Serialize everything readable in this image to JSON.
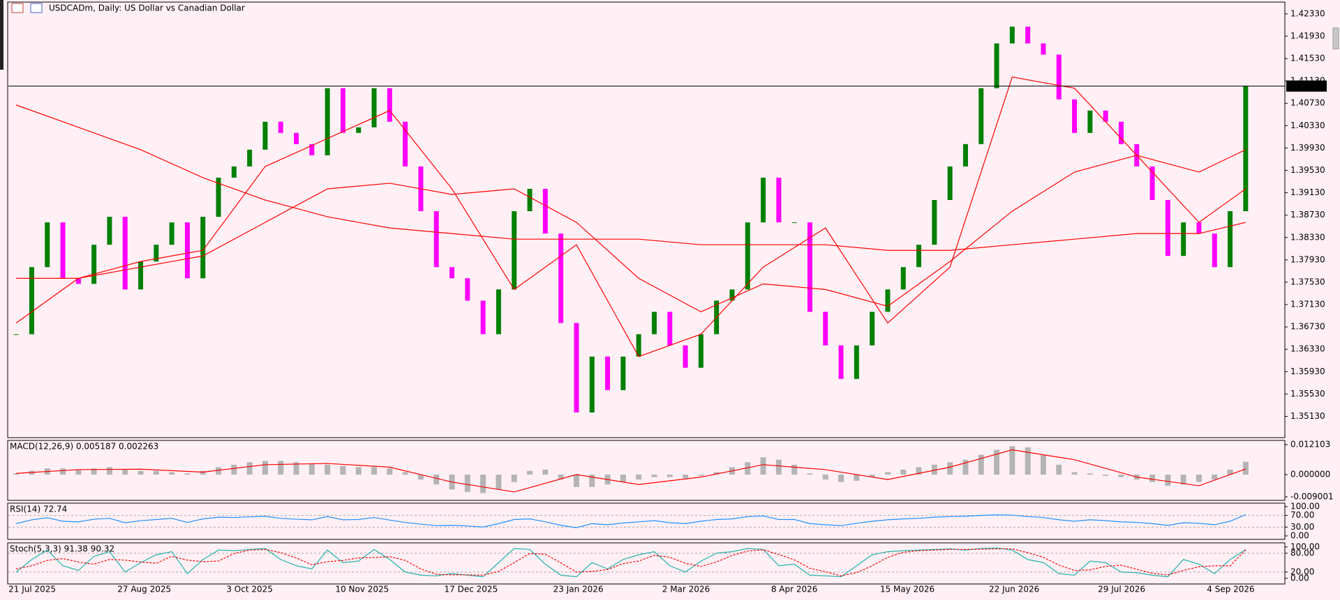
{
  "chart_data": [
    {
      "type": "candlestick",
      "title": "USDCADm, Daily:  US Dollar vs Canadian Dollar",
      "categories": [
        "21 Jul 2025",
        null,
        null,
        null,
        null,
        null,
        null,
        "27 Aug 2025",
        null,
        null,
        null,
        null,
        null,
        null,
        "3 Oct 2025",
        null,
        null,
        null,
        null,
        null,
        null,
        "10 Nov 2025",
        null,
        null,
        null,
        null,
        null,
        null,
        "17 Dec 2025",
        null,
        null,
        null,
        null,
        null,
        null,
        "23 Jan 2026",
        null,
        null,
        null,
        null,
        null,
        null,
        "2 Mar 2026",
        null,
        null,
        null,
        null,
        null,
        null,
        "8 Apr 2026",
        null,
        null,
        null,
        null,
        null,
        null,
        "15 May 2026",
        null,
        null,
        null,
        null,
        null,
        null,
        "22 Jun 2026",
        null,
        null,
        null,
        null,
        null,
        null,
        "29 Jul 2026",
        null,
        null,
        null,
        null,
        null,
        null,
        "4 Sep 2026",
        null,
        null
      ],
      "values": [
        1.366,
        1.378,
        1.386,
        1.376,
        1.375,
        1.382,
        1.387,
        1.374,
        1.379,
        1.382,
        1.386,
        1.376,
        1.387,
        1.394,
        1.396,
        1.399,
        1.404,
        1.402,
        1.4,
        1.398,
        1.41,
        1.402,
        1.403,
        1.41,
        1.404,
        1.396,
        1.388,
        1.378,
        1.376,
        1.372,
        1.366,
        1.374,
        1.388,
        1.392,
        1.384,
        1.368,
        1.352,
        1.362,
        1.356,
        1.362,
        1.366,
        1.37,
        1.364,
        1.36,
        1.366,
        1.372,
        1.374,
        1.386,
        1.394,
        1.386,
        1.386,
        1.37,
        1.364,
        1.358,
        1.364,
        1.37,
        1.374,
        1.378,
        1.382,
        1.39,
        1.396,
        1.4,
        1.41,
        1.418,
        1.421,
        1.418,
        1.416,
        1.408,
        1.402,
        1.406,
        1.404,
        1.4,
        1.396,
        1.39,
        1.38,
        1.386,
        1.384,
        1.378,
        1.388,
        1.41038
      ],
      "up_color": "#008000",
      "down_color": "#ff00ff",
      "series": [
        {
          "color": "#ff0000",
          "x": [
            0,
            4,
            8,
            12,
            16,
            20,
            24,
            28,
            32,
            36,
            40,
            44,
            48,
            52,
            56,
            60,
            64,
            68,
            72,
            76,
            79
          ],
          "values": [
            1.368,
            1.376,
            1.379,
            1.381,
            1.396,
            1.401,
            1.406,
            1.392,
            1.374,
            1.382,
            1.362,
            1.366,
            1.378,
            1.385,
            1.368,
            1.378,
            1.412,
            1.41,
            1.398,
            1.386,
            1.392
          ]
        },
        {
          "color": "#ff0000",
          "x": [
            0,
            4,
            8,
            12,
            16,
            20,
            24,
            28,
            32,
            36,
            40,
            44,
            48,
            52,
            56,
            60,
            64,
            68,
            72,
            76,
            79
          ],
          "values": [
            1.376,
            1.376,
            1.378,
            1.38,
            1.386,
            1.392,
            1.393,
            1.391,
            1.392,
            1.386,
            1.376,
            1.37,
            1.375,
            1.374,
            1.371,
            1.379,
            1.388,
            1.395,
            1.398,
            1.395,
            1.399
          ]
        },
        {
          "color": "#ff0000",
          "x": [
            0,
            4,
            8,
            12,
            16,
            20,
            24,
            28,
            32,
            36,
            40,
            44,
            48,
            52,
            56,
            60,
            64,
            68,
            72,
            76,
            79
          ],
          "values": [
            1.407,
            1.403,
            1.399,
            1.394,
            1.39,
            1.387,
            1.385,
            1.384,
            1.383,
            1.383,
            1.383,
            1.382,
            1.382,
            1.382,
            1.381,
            1.381,
            1.382,
            1.383,
            1.384,
            1.384,
            1.386
          ]
        }
      ],
      "current_price": 1.41038,
      "ylim": [
        1.3475,
        1.4254
      ],
      "yticks": [
        {
          "value": 1.3513,
          "label": "1.35130"
        },
        {
          "value": 1.3553,
          "label": "1.35530"
        },
        {
          "value": 1.3593,
          "label": "1.35930"
        },
        {
          "value": 1.3633,
          "label": "1.36330"
        },
        {
          "value": 1.3673,
          "label": "1.36730"
        },
        {
          "value": 1.3713,
          "label": "1.37130"
        },
        {
          "value": 1.3753,
          "label": "1.37530"
        },
        {
          "value": 1.3793,
          "label": "1.37930"
        },
        {
          "value": 1.3833,
          "label": "1.38330"
        },
        {
          "value": 1.3873,
          "label": "1.38730"
        },
        {
          "value": 1.3913,
          "label": "1.39130"
        },
        {
          "value": 1.3953,
          "label": "1.39530"
        },
        {
          "value": 1.3993,
          "label": "1.39930"
        },
        {
          "value": 1.4033,
          "label": "1.40330"
        },
        {
          "value": 1.4073,
          "label": "1.40730"
        },
        {
          "value": 1.4113,
          "label": "1.41130"
        },
        {
          "value": 1.4153,
          "label": "1.41530"
        },
        {
          "value": 1.4193,
          "label": "1.41930"
        },
        {
          "value": 1.4233,
          "label": "1.42330"
        }
      ]
    },
    {
      "type": "macd",
      "title": "MACD(12,26,9) 0.005187 0.002263",
      "color": "#b4b4b4",
      "values": [
        0.0005,
        0.0015,
        0.0025,
        0.0025,
        0.002,
        0.0025,
        0.003,
        0.002,
        0.0015,
        0.0015,
        0.001,
        0.0005,
        0.0015,
        0.003,
        0.004,
        0.005,
        0.0055,
        0.0055,
        0.005,
        0.0045,
        0.004,
        0.0035,
        0.003,
        0.003,
        0.0025,
        0.001,
        -0.002,
        -0.004,
        -0.006,
        -0.007,
        -0.0075,
        -0.006,
        -0.003,
        0.0015,
        0.002,
        -0.002,
        -0.005,
        -0.005,
        -0.004,
        -0.003,
        -0.002,
        -0.001,
        -0.001,
        -0.0015,
        -0.0005,
        0.001,
        0.003,
        0.005,
        0.007,
        0.006,
        0.004,
        0.0005,
        -0.002,
        -0.003,
        -0.0025,
        -0.001,
        0.001,
        0.002,
        0.003,
        0.004,
        0.005,
        0.006,
        0.008,
        0.01,
        0.0115,
        0.011,
        0.008,
        0.004,
        0.001,
        0.0005,
        -0.0005,
        -0.001,
        -0.002,
        -0.003,
        -0.0045,
        -0.004,
        -0.003,
        -0.002,
        0.002,
        0.005187
      ],
      "series": [
        {
          "color": "#ff0000",
          "x": [
            0,
            4,
            8,
            12,
            16,
            20,
            24,
            28,
            32,
            36,
            40,
            44,
            48,
            52,
            56,
            60,
            64,
            68,
            72,
            76,
            79
          ],
          "values": [
            0.0005,
            0.002,
            0.0022,
            0.001,
            0.004,
            0.0045,
            0.003,
            -0.003,
            -0.007,
            0,
            -0.004,
            -0.001,
            0.004,
            0.002,
            -0.002,
            0.003,
            0.01,
            0.006,
            -0.001,
            -0.0045,
            0.002263
          ]
        }
      ],
      "ylim": [
        -0.0104,
        0.0138
      ],
      "yticks": [
        -0.009001,
        {
          "value": 0,
          "label": "0.000000"
        },
        0.012103
      ]
    },
    {
      "type": "rsi",
      "title": "RSI(14) 72.74",
      "color": "#1e90ff",
      "values": [
        42,
        55,
        62,
        50,
        48,
        57,
        60,
        45,
        52,
        56,
        60,
        46,
        58,
        64,
        63,
        65,
        67,
        60,
        57,
        55,
        66,
        55,
        56,
        63,
        54,
        46,
        40,
        35,
        36,
        34,
        30,
        42,
        56,
        58,
        48,
        36,
        28,
        42,
        38,
        44,
        48,
        52,
        45,
        42,
        50,
        56,
        58,
        66,
        68,
        56,
        56,
        42,
        38,
        35,
        43,
        50,
        55,
        58,
        60,
        64,
        66,
        67,
        70,
        72,
        71,
        66,
        63,
        55,
        50,
        55,
        52,
        48,
        46,
        42,
        36,
        45,
        43,
        38,
        50,
        72.74
      ],
      "levels": [
        70,
        30
      ],
      "ylim": [
        -12,
        112
      ],
      "yticks": [
        {
          "value": 0,
          "label": "0.00"
        },
        {
          "value": 30,
          "label": "30.00"
        },
        {
          "value": 70,
          "label": "70.00"
        },
        {
          "value": 100,
          "label": "100.00"
        }
      ]
    },
    {
      "type": "stoch",
      "title": "Stoch(5,3,3) 91.38 90.32",
      "series": [
        {
          "color": "#20b2aa",
          "values": [
            20,
            60,
            90,
            40,
            25,
            70,
            85,
            20,
            50,
            75,
            85,
            15,
            60,
            90,
            88,
            92,
            95,
            60,
            40,
            30,
            90,
            50,
            55,
            92,
            60,
            20,
            10,
            8,
            15,
            10,
            5,
            50,
            95,
            92,
            45,
            10,
            5,
            50,
            30,
            60,
            75,
            85,
            40,
            20,
            55,
            80,
            85,
            95,
            92,
            40,
            45,
            10,
            8,
            5,
            40,
            75,
            85,
            88,
            90,
            92,
            94,
            90,
            95,
            97,
            90,
            60,
            50,
            15,
            10,
            55,
            50,
            20,
            18,
            10,
            5,
            60,
            45,
            15,
            60,
            91.38
          ]
        },
        {
          "color": "#ff0000",
          "values": [
            30,
            40,
            57,
            63,
            52,
            45,
            60,
            58,
            52,
            48,
            70,
            58,
            53,
            55,
            79,
            90,
            92,
            82,
            65,
            43,
            53,
            57,
            65,
            66,
            69,
            57,
            30,
            13,
            11,
            11,
            10,
            22,
            50,
            79,
            77,
            49,
            20,
            22,
            28,
            47,
            55,
            73,
            67,
            48,
            38,
            52,
            73,
            87,
            91,
            76,
            59,
            32,
            21,
            8,
            18,
            40,
            67,
            83,
            88,
            90,
            92,
            92,
            93,
            94,
            94,
            82,
            67,
            42,
            25,
            27,
            38,
            42,
            29,
            16,
            11,
            25,
            37,
            40,
            40,
            90.32
          ]
        }
      ],
      "levels": [
        80,
        20
      ],
      "ylim": [
        -18,
        113
      ],
      "yticks": [
        {
          "value": 0,
          "label": "0.00"
        },
        {
          "value": 20,
          "label": "20.00"
        },
        {
          "value": 80,
          "label": "80.00"
        },
        {
          "value": 100,
          "label": "100.00"
        }
      ]
    }
  ]
}
